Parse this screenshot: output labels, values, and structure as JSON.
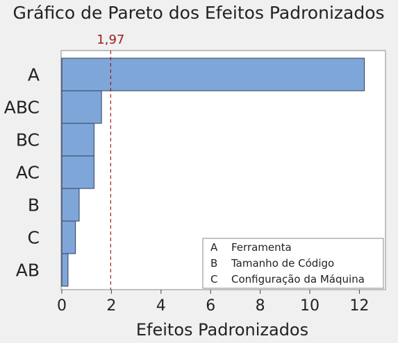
{
  "chart_data": {
    "type": "bar",
    "orientation": "horizontal",
    "title": "Gráfico de Pareto dos Efeitos Padronizados",
    "xlabel": "Efeitos Padronizados",
    "ylabel": "",
    "categories": [
      "A",
      "ABC",
      "BC",
      "AC",
      "B",
      "C",
      "AB"
    ],
    "values": [
      12.2,
      1.6,
      1.3,
      1.3,
      0.7,
      0.55,
      0.25
    ],
    "xlim": [
      0,
      13.2
    ],
    "xticks": [
      "0",
      "2",
      "4",
      "6",
      "8",
      "10",
      "12"
    ],
    "reference_line": {
      "value": 1.97,
      "label": "1,97"
    },
    "legend": {
      "placement": "bottom-right",
      "items": [
        {
          "key": "A",
          "label": "Ferramenta"
        },
        {
          "key": "B",
          "label": "Tamanho de Código"
        },
        {
          "key": "C",
          "label": "Configuração da Máquina"
        }
      ]
    },
    "grid": false
  },
  "colors": {
    "bar_fill": "#7fa6d9",
    "bar_stroke": "#2c3e5a",
    "reference_line": "#9b1c1c",
    "plot_background": "#ffffff",
    "page_background": "#f0f0f0"
  }
}
